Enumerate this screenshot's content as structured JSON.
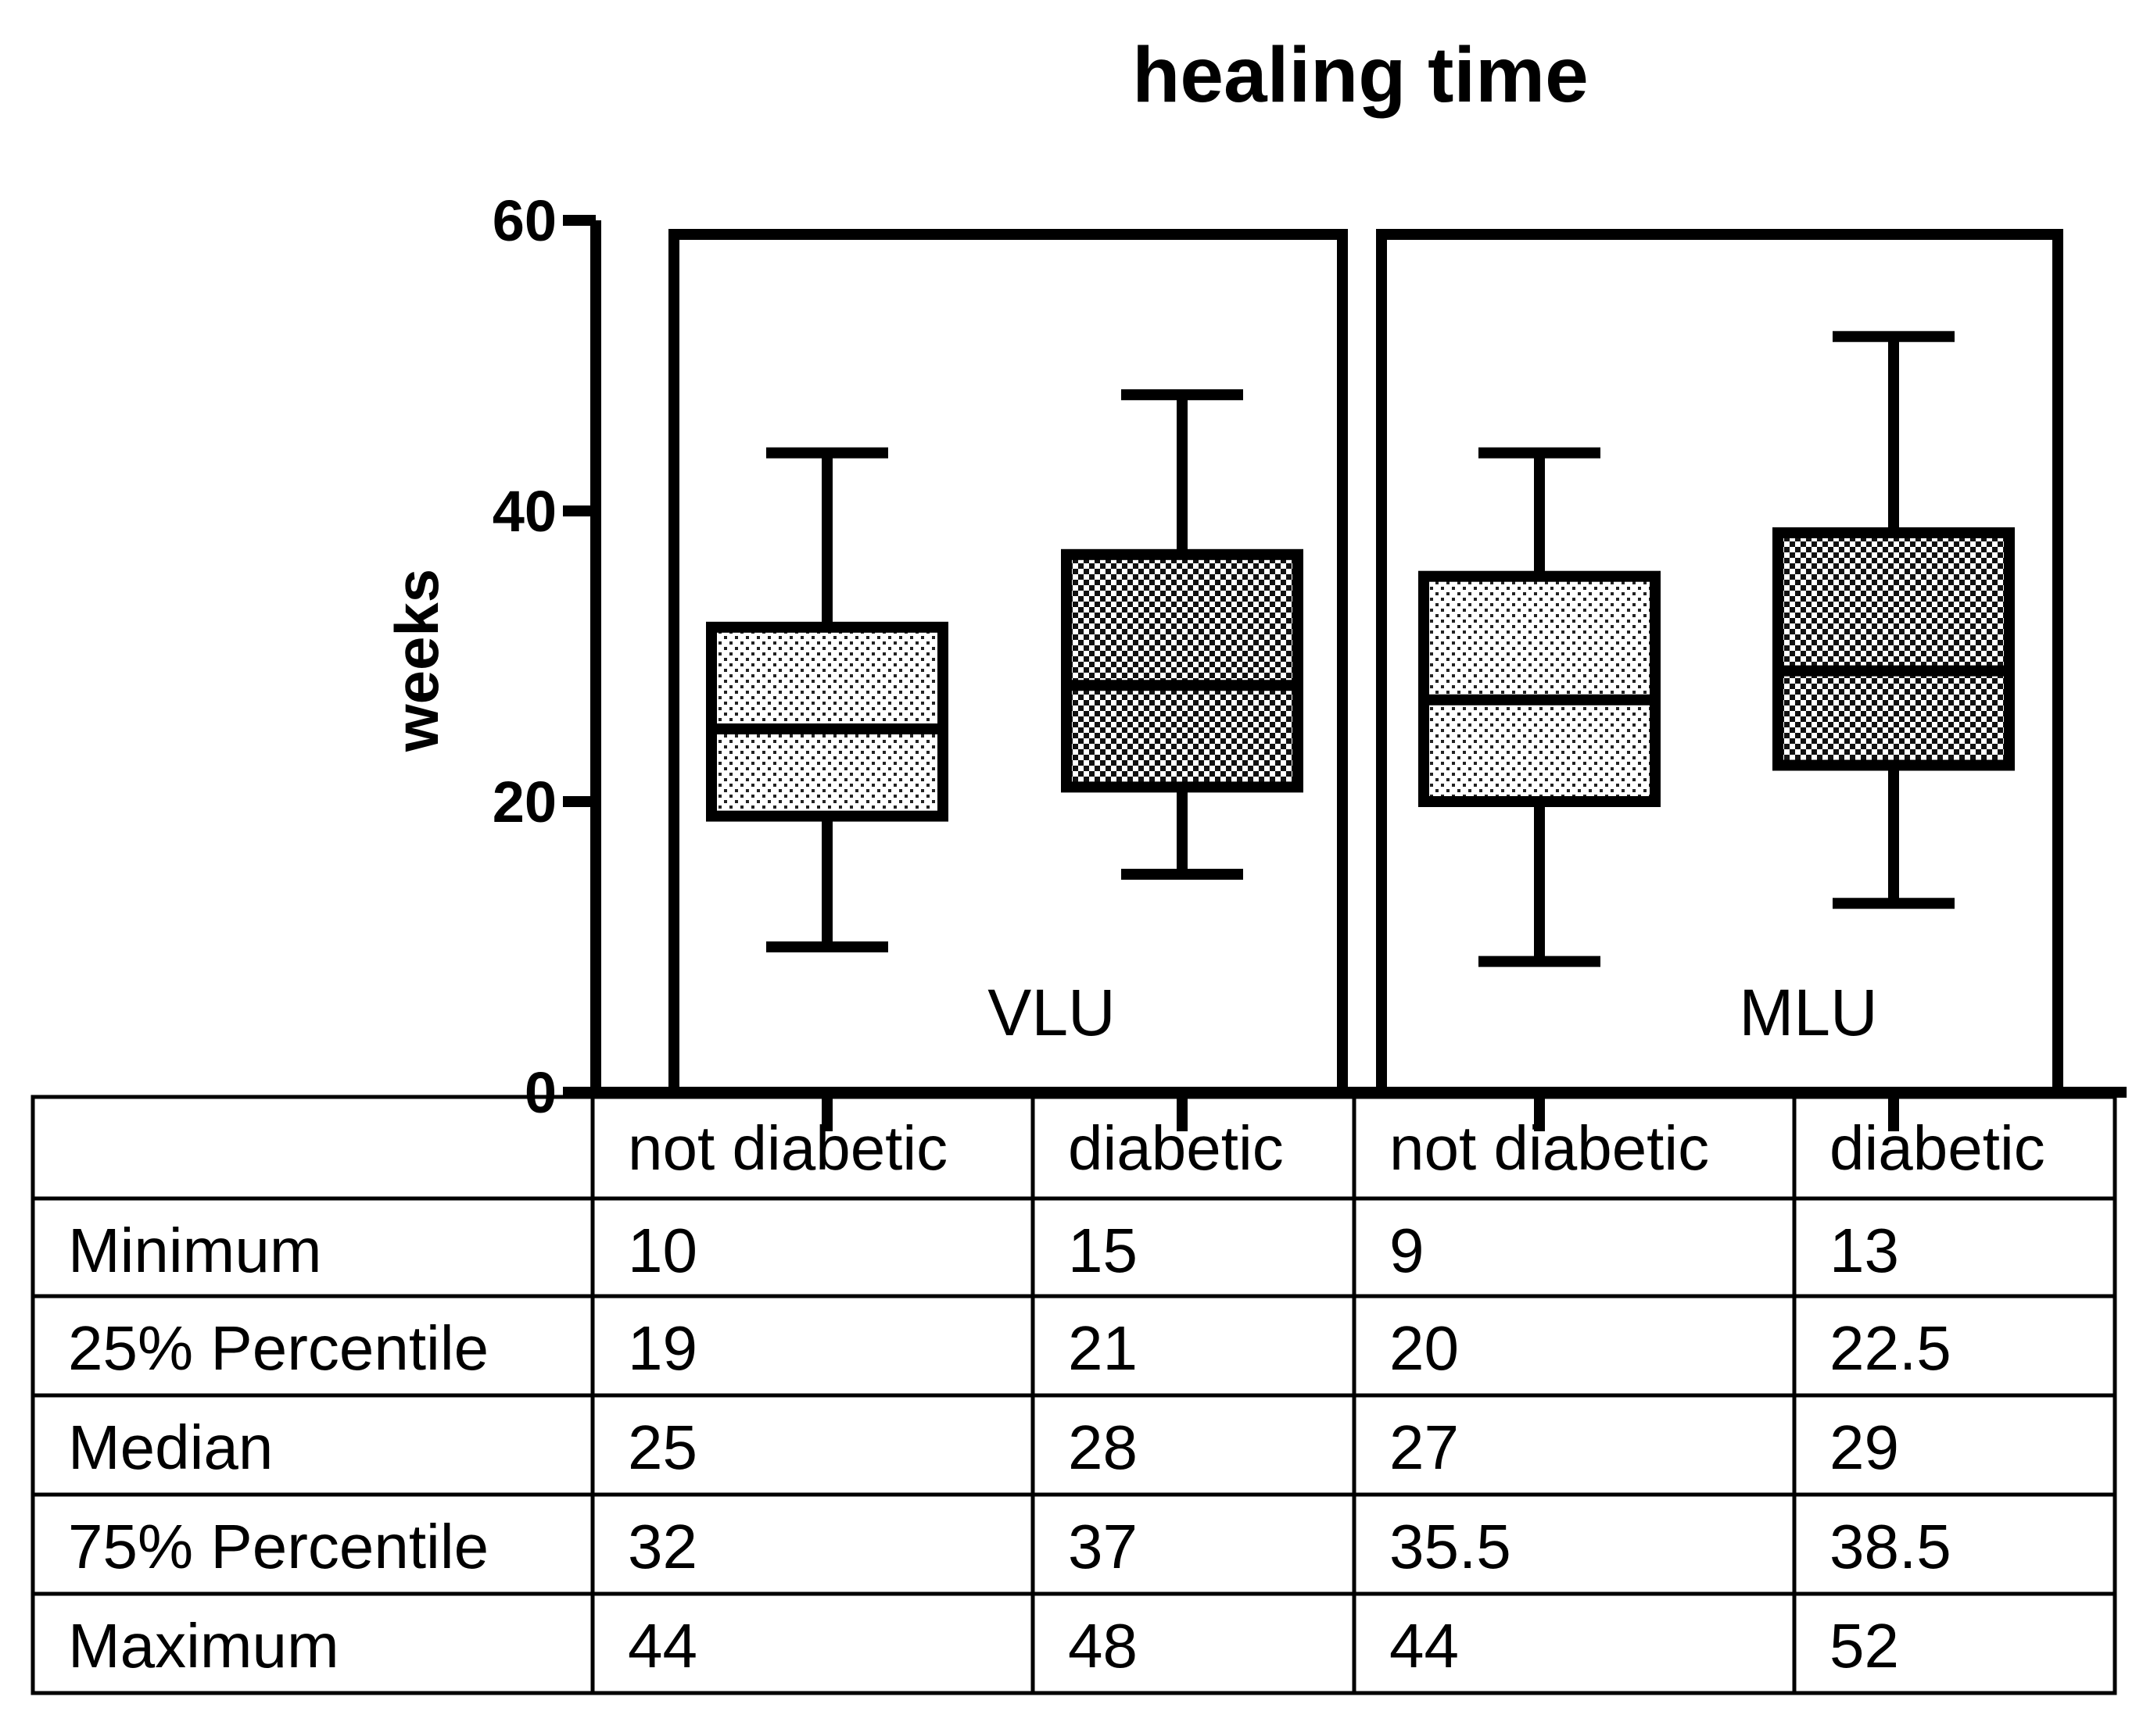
{
  "chart_data": {
    "type": "box",
    "title": "healing time",
    "ylabel": "weeks",
    "xlabel": "",
    "ylim": [
      0,
      60
    ],
    "yticks": [
      0,
      20,
      40,
      60
    ],
    "groups": [
      {
        "name": "VLU",
        "categories": [
          {
            "name": "not diabetic",
            "min": 10,
            "q1": 19,
            "median": 25,
            "q3": 32,
            "max": 44,
            "pattern": "light-dots"
          },
          {
            "name": "diabetic",
            "min": 15,
            "q1": 21,
            "median": 28,
            "q3": 37,
            "max": 48,
            "pattern": "dark-checker"
          }
        ]
      },
      {
        "name": "MLU",
        "categories": [
          {
            "name": "not diabetic",
            "min": 9,
            "q1": 20,
            "median": 27,
            "q3": 35.5,
            "max": 44,
            "pattern": "light-dots"
          },
          {
            "name": "diabetic",
            "min": 13,
            "q1": 22.5,
            "median": 29,
            "q3": 38.5,
            "max": 52,
            "pattern": "dark-checker"
          }
        ]
      }
    ],
    "table": {
      "headers": [
        "",
        "not diabetic",
        "diabetic",
        "not diabetic",
        "diabetic"
      ],
      "rows": [
        {
          "label": "Minimum",
          "values": [
            "10",
            "15",
            "9",
            "13"
          ]
        },
        {
          "label": "25% Percentile",
          "values": [
            "19",
            "21",
            "20",
            "22.5"
          ]
        },
        {
          "label": "Median",
          "values": [
            "25",
            "28",
            "27",
            "29"
          ]
        },
        {
          "label": "75% Percentile",
          "values": [
            "32",
            "37",
            "35.5",
            "38.5"
          ]
        },
        {
          "label": "Maximum",
          "values": [
            "44",
            "48",
            "44",
            "52"
          ]
        }
      ]
    }
  }
}
